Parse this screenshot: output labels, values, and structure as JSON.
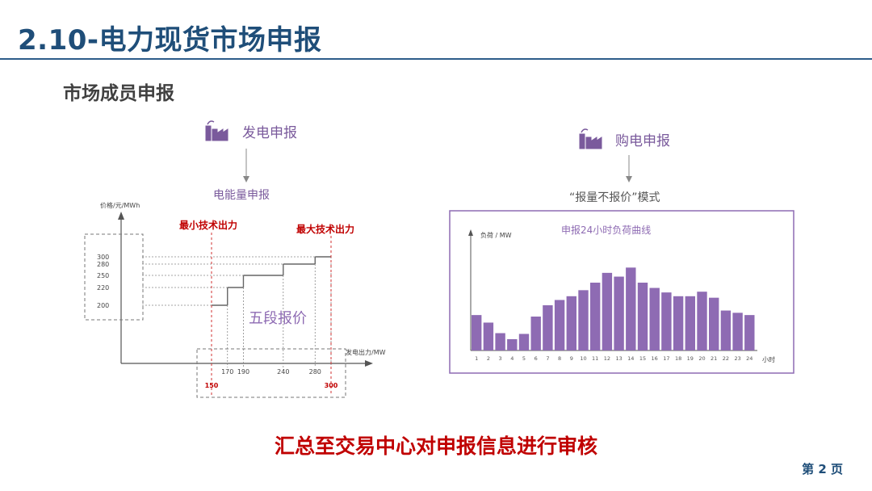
{
  "slide": {
    "title": "2.10-电力现货市场申报",
    "subtitle": "市场成员申报",
    "summary": "汇总至交易中心对申报信息进行审核",
    "page_number": "第 2 页"
  },
  "generation": {
    "heading": "发电申报",
    "sub_heading": "电能量申报",
    "icon": "power-plant-icon"
  },
  "purchase": {
    "heading": "购电申报",
    "sub_heading": "“报量不报价”模式",
    "icon": "power-plant-icon"
  },
  "colors": {
    "title": "#1f4e79",
    "accent_red": "#c00000",
    "purple": "#8e6bb3",
    "purple_dark": "#6a4a8f"
  },
  "chart_data": [
    {
      "type": "line",
      "title": "五段报价",
      "ylabel": "价格/元/MWh",
      "xlabel": "发电出力/MW",
      "y_ticks": [
        "300",
        "280",
        "250",
        "220",
        "200"
      ],
      "x_ticks": [
        "170",
        "190",
        "240",
        "280"
      ],
      "x_boundary_ticks": [
        "150",
        "300"
      ],
      "annotations": {
        "min_output": "最小技术出力",
        "max_output": "最大技术出力"
      },
      "steps": [
        {
          "x_start": 150,
          "x_end": 170,
          "price": 200
        },
        {
          "x_start": 170,
          "x_end": 190,
          "price": 220
        },
        {
          "x_start": 190,
          "x_end": 240,
          "price": 250
        },
        {
          "x_start": 240,
          "x_end": 280,
          "price": 280
        },
        {
          "x_start": 280,
          "x_end": 300,
          "price": 300
        }
      ],
      "xlim": [
        0,
        320
      ],
      "ylim": [
        0,
        320
      ]
    },
    {
      "type": "bar",
      "title": "申报24小时负荷曲线",
      "ylabel": "负荷 / MW",
      "xlabel": "小时",
      "categories": [
        "1",
        "2",
        "3",
        "4",
        "5",
        "6",
        "7",
        "8",
        "9",
        "10",
        "11",
        "12",
        "13",
        "14",
        "15",
        "16",
        "17",
        "18",
        "19",
        "20",
        "21",
        "22",
        "23",
        "24"
      ],
      "values": [
        47,
        37,
        23,
        15,
        22,
        45,
        60,
        67,
        72,
        80,
        90,
        103,
        98,
        110,
        90,
        83,
        77,
        72,
        72,
        78,
        70,
        53,
        50,
        47
      ],
      "ylim": [
        0,
        150
      ]
    }
  ]
}
